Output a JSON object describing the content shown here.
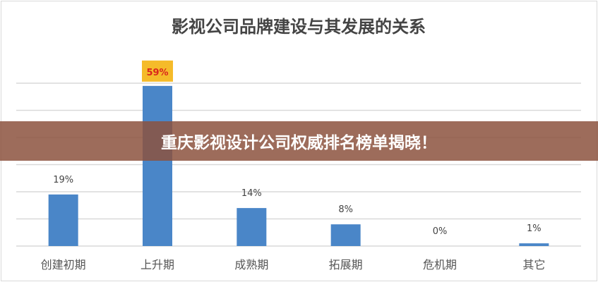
{
  "chart_data": {
    "type": "bar",
    "title": "影视公司品牌建设与其发展的关系",
    "categories": [
      "创建初期",
      "上升期",
      "成熟期",
      "拓展期",
      "危机期",
      "其它"
    ],
    "values": [
      19,
      59,
      14,
      8,
      0,
      1
    ],
    "data_labels": [
      "19%",
      "59%",
      "14%",
      "8%",
      "0%",
      "1%"
    ],
    "highlighted_label_index": 1,
    "ylim": [
      0,
      60
    ],
    "ytick_step": 10,
    "grid": true,
    "legend": "none",
    "colors": {
      "bar": "#4a86c8",
      "highlight_label_bg": "#f5bb2a",
      "highlight_label_text": "#d9261c",
      "grid": "#d9d9d9"
    }
  },
  "banner": {
    "text": "重庆影视设计公司权威排名榜单揭晓！"
  }
}
